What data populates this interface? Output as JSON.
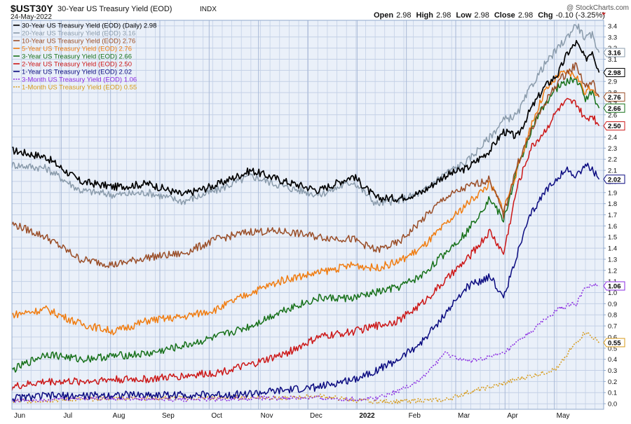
{
  "header": {
    "symbol": "$UST30Y",
    "name": "30-Year US Treasury Yield (EOD)",
    "exchange": "INDX",
    "date": "24-May-2022",
    "watermark": "@ StockCharts.com",
    "ohlc": [
      {
        "label": "Open",
        "value": "2.98"
      },
      {
        "label": "High",
        "value": "2.98"
      },
      {
        "label": "Low",
        "value": "2.98"
      },
      {
        "label": "Close",
        "value": "2.98"
      },
      {
        "label": "Chg",
        "value": "-0.10 (-3.25%)"
      }
    ]
  },
  "colors": {
    "plot_bg": "#eaf0f9",
    "grid": "#c3d0e6",
    "frame": "#8fa8cc",
    "text": "#111111",
    "chg_down": "#c03030"
  },
  "chart_data": {
    "type": "line",
    "x_axis": {
      "labels": [
        "Jun",
        "Jul",
        "Aug",
        "Sep",
        "Oct",
        "Nov",
        "Dec",
        "2022",
        "Feb",
        "Mar",
        "Apr",
        "May"
      ],
      "domain": [
        0,
        260
      ]
    },
    "y_axis": {
      "min": -0.05,
      "max": 3.45,
      "ticks": [
        "0.0",
        "0.1",
        "0.2",
        "0.3",
        "0.4",
        "0.5",
        "0.6",
        "0.7",
        "0.8",
        "0.9",
        "1.0",
        "1.1",
        "1.2",
        "1.3",
        "1.4",
        "1.5",
        "1.6",
        "1.7",
        "1.8",
        "1.9",
        "2.0",
        "2.1",
        "2.2",
        "2.3",
        "2.4",
        "2.5",
        "2.6",
        "2.7",
        "2.8",
        "2.9",
        "3.0",
        "3.1",
        "3.2",
        "3.3",
        "3.4"
      ],
      "side": "right"
    },
    "grid": true,
    "legend_position": "top-left",
    "series": [
      {
        "name": "30-Year US Treasury Yield (EOD) (Daily)",
        "value_label": "2.98",
        "color": "#000000",
        "dash": "",
        "width": 1.7,
        "last": 2.98,
        "points": [
          [
            0,
            2.28
          ],
          [
            15,
            2.22
          ],
          [
            30,
            2.0
          ],
          [
            45,
            1.95
          ],
          [
            60,
            1.98
          ],
          [
            75,
            1.88
          ],
          [
            90,
            1.97
          ],
          [
            105,
            2.1
          ],
          [
            120,
            2.0
          ],
          [
            135,
            1.92
          ],
          [
            150,
            2.05
          ],
          [
            160,
            1.85
          ],
          [
            170,
            1.85
          ],
          [
            180,
            1.9
          ],
          [
            190,
            2.05
          ],
          [
            200,
            2.12
          ],
          [
            210,
            2.28
          ],
          [
            216,
            2.45
          ],
          [
            222,
            2.4
          ],
          [
            228,
            2.65
          ],
          [
            234,
            2.85
          ],
          [
            240,
            2.97
          ],
          [
            244,
            3.15
          ],
          [
            248,
            3.25
          ],
          [
            252,
            3.1
          ],
          [
            255,
            3.18
          ],
          [
            258,
            2.98
          ]
        ]
      },
      {
        "name": "20-Year US Treasury Yield (EOD)",
        "value_label": "3.16",
        "color": "#8a9bab",
        "dash": "",
        "width": 1.5,
        "last": 3.16,
        "points": [
          [
            0,
            2.15
          ],
          [
            15,
            2.12
          ],
          [
            30,
            1.92
          ],
          [
            45,
            1.88
          ],
          [
            60,
            1.9
          ],
          [
            75,
            1.82
          ],
          [
            90,
            1.92
          ],
          [
            105,
            2.05
          ],
          [
            120,
            1.95
          ],
          [
            135,
            1.88
          ],
          [
            150,
            2.0
          ],
          [
            160,
            1.8
          ],
          [
            170,
            1.83
          ],
          [
            180,
            1.9
          ],
          [
            190,
            2.07
          ],
          [
            200,
            2.18
          ],
          [
            210,
            2.4
          ],
          [
            216,
            2.55
          ],
          [
            222,
            2.6
          ],
          [
            228,
            2.85
          ],
          [
            234,
            3.05
          ],
          [
            240,
            3.2
          ],
          [
            244,
            3.3
          ],
          [
            248,
            3.42
          ],
          [
            252,
            3.28
          ],
          [
            255,
            3.32
          ],
          [
            258,
            3.16
          ]
        ]
      },
      {
        "name": "10-Year US Treasury Yield (EOD)",
        "value_label": "2.76",
        "color": "#9a4e28",
        "dash": "",
        "width": 1.5,
        "last": 2.76,
        "points": [
          [
            0,
            1.62
          ],
          [
            15,
            1.5
          ],
          [
            30,
            1.3
          ],
          [
            45,
            1.25
          ],
          [
            60,
            1.32
          ],
          [
            75,
            1.35
          ],
          [
            90,
            1.48
          ],
          [
            105,
            1.55
          ],
          [
            120,
            1.55
          ],
          [
            135,
            1.5
          ],
          [
            150,
            1.48
          ],
          [
            160,
            1.38
          ],
          [
            170,
            1.45
          ],
          [
            180,
            1.65
          ],
          [
            190,
            1.85
          ],
          [
            200,
            1.95
          ],
          [
            210,
            2.02
          ],
          [
            216,
            1.7
          ],
          [
            222,
            2.15
          ],
          [
            228,
            2.45
          ],
          [
            234,
            2.7
          ],
          [
            240,
            2.9
          ],
          [
            244,
            2.98
          ],
          [
            248,
            3.05
          ],
          [
            252,
            2.85
          ],
          [
            255,
            2.9
          ],
          [
            258,
            2.76
          ]
        ]
      },
      {
        "name": "5-Year US Treasury Yield (EOD)",
        "value_label": "2.76",
        "color": "#f07c10",
        "dash": "",
        "width": 1.5,
        "last": 2.76,
        "points": [
          [
            0,
            0.8
          ],
          [
            15,
            0.85
          ],
          [
            30,
            0.72
          ],
          [
            45,
            0.65
          ],
          [
            60,
            0.75
          ],
          [
            75,
            0.78
          ],
          [
            90,
            0.85
          ],
          [
            105,
            1.0
          ],
          [
            120,
            1.12
          ],
          [
            135,
            1.18
          ],
          [
            150,
            1.25
          ],
          [
            160,
            1.22
          ],
          [
            170,
            1.28
          ],
          [
            180,
            1.4
          ],
          [
            190,
            1.6
          ],
          [
            200,
            1.8
          ],
          [
            210,
            1.98
          ],
          [
            216,
            1.75
          ],
          [
            222,
            2.1
          ],
          [
            228,
            2.5
          ],
          [
            234,
            2.8
          ],
          [
            240,
            2.95
          ],
          [
            244,
            2.98
          ],
          [
            248,
            2.95
          ],
          [
            252,
            2.8
          ],
          [
            255,
            2.85
          ],
          [
            258,
            2.76
          ]
        ]
      },
      {
        "name": "3-Year US Treasury Yield (EOD)",
        "value_label": "2.66",
        "color": "#17711a",
        "dash": "",
        "width": 1.5,
        "last": 2.66,
        "points": [
          [
            0,
            0.3
          ],
          [
            15,
            0.45
          ],
          [
            30,
            0.4
          ],
          [
            45,
            0.43
          ],
          [
            60,
            0.45
          ],
          [
            75,
            0.52
          ],
          [
            90,
            0.6
          ],
          [
            105,
            0.7
          ],
          [
            120,
            0.85
          ],
          [
            135,
            0.95
          ],
          [
            150,
            0.95
          ],
          [
            160,
            1.0
          ],
          [
            170,
            1.05
          ],
          [
            180,
            1.15
          ],
          [
            190,
            1.35
          ],
          [
            200,
            1.55
          ],
          [
            210,
            1.85
          ],
          [
            216,
            1.65
          ],
          [
            222,
            2.1
          ],
          [
            228,
            2.45
          ],
          [
            234,
            2.7
          ],
          [
            240,
            2.85
          ],
          [
            244,
            2.9
          ],
          [
            248,
            2.92
          ],
          [
            252,
            2.75
          ],
          [
            255,
            2.8
          ],
          [
            258,
            2.66
          ]
        ]
      },
      {
        "name": "2-Year US Treasury Yield (EOD)",
        "value_label": "2.50",
        "color": "#cc1717",
        "dash": "",
        "width": 1.5,
        "last": 2.5,
        "points": [
          [
            0,
            0.15
          ],
          [
            15,
            0.2
          ],
          [
            30,
            0.2
          ],
          [
            45,
            0.22
          ],
          [
            60,
            0.22
          ],
          [
            75,
            0.25
          ],
          [
            90,
            0.28
          ],
          [
            105,
            0.35
          ],
          [
            120,
            0.45
          ],
          [
            135,
            0.6
          ],
          [
            150,
            0.65
          ],
          [
            160,
            0.7
          ],
          [
            170,
            0.75
          ],
          [
            180,
            0.9
          ],
          [
            190,
            1.1
          ],
          [
            200,
            1.3
          ],
          [
            210,
            1.55
          ],
          [
            216,
            1.35
          ],
          [
            222,
            1.95
          ],
          [
            228,
            2.3
          ],
          [
            234,
            2.45
          ],
          [
            240,
            2.65
          ],
          [
            244,
            2.72
          ],
          [
            248,
            2.7
          ],
          [
            252,
            2.55
          ],
          [
            255,
            2.6
          ],
          [
            258,
            2.5
          ]
        ]
      },
      {
        "name": "1-Year US Treasury Yield (EOD)",
        "value_label": "2.02",
        "color": "#0b0b80",
        "dash": "",
        "width": 1.5,
        "last": 2.02,
        "points": [
          [
            0,
            0.05
          ],
          [
            15,
            0.07
          ],
          [
            30,
            0.07
          ],
          [
            45,
            0.08
          ],
          [
            60,
            0.08
          ],
          [
            75,
            0.08
          ],
          [
            90,
            0.08
          ],
          [
            105,
            0.09
          ],
          [
            120,
            0.12
          ],
          [
            135,
            0.15
          ],
          [
            150,
            0.22
          ],
          [
            160,
            0.3
          ],
          [
            170,
            0.4
          ],
          [
            180,
            0.55
          ],
          [
            190,
            0.8
          ],
          [
            200,
            1.05
          ],
          [
            210,
            1.15
          ],
          [
            216,
            0.95
          ],
          [
            222,
            1.35
          ],
          [
            228,
            1.7
          ],
          [
            234,
            1.9
          ],
          [
            240,
            2.05
          ],
          [
            244,
            2.1
          ],
          [
            248,
            2.05
          ],
          [
            252,
            2.15
          ],
          [
            255,
            2.1
          ],
          [
            258,
            2.02
          ]
        ]
      },
      {
        "name": "3-Month US Treasury Yield (EOD)",
        "value_label": "1.06",
        "color": "#8a2be2",
        "dash": "2,2",
        "width": 1.5,
        "last": 1.06,
        "points": [
          [
            0,
            0.03
          ],
          [
            15,
            0.04
          ],
          [
            30,
            0.05
          ],
          [
            45,
            0.05
          ],
          [
            60,
            0.04
          ],
          [
            75,
            0.04
          ],
          [
            90,
            0.04
          ],
          [
            105,
            0.05
          ],
          [
            120,
            0.05
          ],
          [
            135,
            0.05
          ],
          [
            150,
            0.04
          ],
          [
            160,
            0.05
          ],
          [
            170,
            0.12
          ],
          [
            180,
            0.22
          ],
          [
            190,
            0.45
          ],
          [
            200,
            0.38
          ],
          [
            210,
            0.42
          ],
          [
            216,
            0.45
          ],
          [
            222,
            0.55
          ],
          [
            228,
            0.65
          ],
          [
            234,
            0.75
          ],
          [
            240,
            0.85
          ],
          [
            244,
            0.88
          ],
          [
            248,
            0.9
          ],
          [
            252,
            1.05
          ],
          [
            255,
            1.06
          ],
          [
            258,
            1.06
          ]
        ]
      },
      {
        "name": "1-Month US Treasury Yield (EOD)",
        "value_label": "0.55",
        "color": "#d69a1a",
        "dash": "2,2",
        "width": 1.5,
        "last": 0.55,
        "points": [
          [
            0,
            0.02
          ],
          [
            15,
            0.03
          ],
          [
            30,
            0.04
          ],
          [
            45,
            0.05
          ],
          [
            60,
            0.05
          ],
          [
            75,
            0.05
          ],
          [
            90,
            0.05
          ],
          [
            105,
            0.06
          ],
          [
            120,
            0.05
          ],
          [
            135,
            0.07
          ],
          [
            150,
            0.03
          ],
          [
            160,
            0.02
          ],
          [
            170,
            0.02
          ],
          [
            180,
            0.03
          ],
          [
            190,
            0.03
          ],
          [
            200,
            0.1
          ],
          [
            210,
            0.15
          ],
          [
            216,
            0.18
          ],
          [
            222,
            0.22
          ],
          [
            228,
            0.25
          ],
          [
            234,
            0.28
          ],
          [
            240,
            0.32
          ],
          [
            244,
            0.45
          ],
          [
            248,
            0.55
          ],
          [
            252,
            0.65
          ],
          [
            255,
            0.6
          ],
          [
            258,
            0.55
          ]
        ]
      }
    ]
  }
}
